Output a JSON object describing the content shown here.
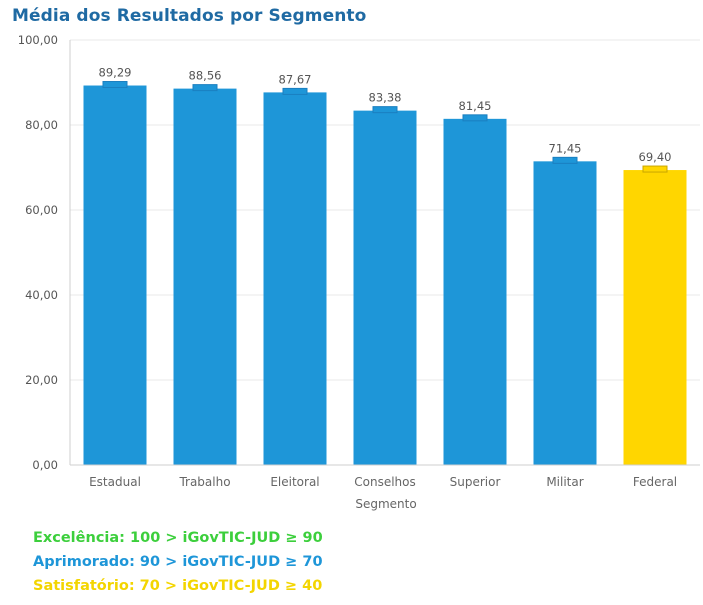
{
  "title": "Média dos Resultados por Segmento",
  "chart_data": {
    "type": "bar",
    "title": "Média dos Resultados por Segmento",
    "xlabel": "Segmento",
    "ylabel": "",
    "ylim": [
      0,
      100
    ],
    "yticks": [
      "0,00",
      "20,00",
      "40,00",
      "60,00",
      "80,00",
      "100,00"
    ],
    "categories": [
      "Estadual",
      "Trabalho",
      "Eleitoral",
      "Conselhos",
      "Superior",
      "Militar",
      "Federal"
    ],
    "values": [
      89.29,
      88.56,
      87.67,
      83.38,
      81.45,
      71.45,
      69.4
    ],
    "value_labels": [
      "89,29",
      "88,56",
      "87,67",
      "83,38",
      "81,45",
      "71,45",
      "69,40"
    ],
    "bar_colors": [
      "#1e96d8",
      "#1e96d8",
      "#1e96d8",
      "#1e96d8",
      "#1e96d8",
      "#1e96d8",
      "#ffd600"
    ],
    "grid": true
  },
  "legend": [
    {
      "text": "Excelência: 100 > iGovTIC-JUD ≥ 90",
      "color": "#3ccf3c"
    },
    {
      "text": "Aprimorado: 90 > iGovTIC-JUD ≥ 70",
      "color": "#1e96d8"
    },
    {
      "text": "Satisfatório: 70 > iGovTIC-JUD ≥ 40",
      "color": "#f3d500"
    }
  ]
}
